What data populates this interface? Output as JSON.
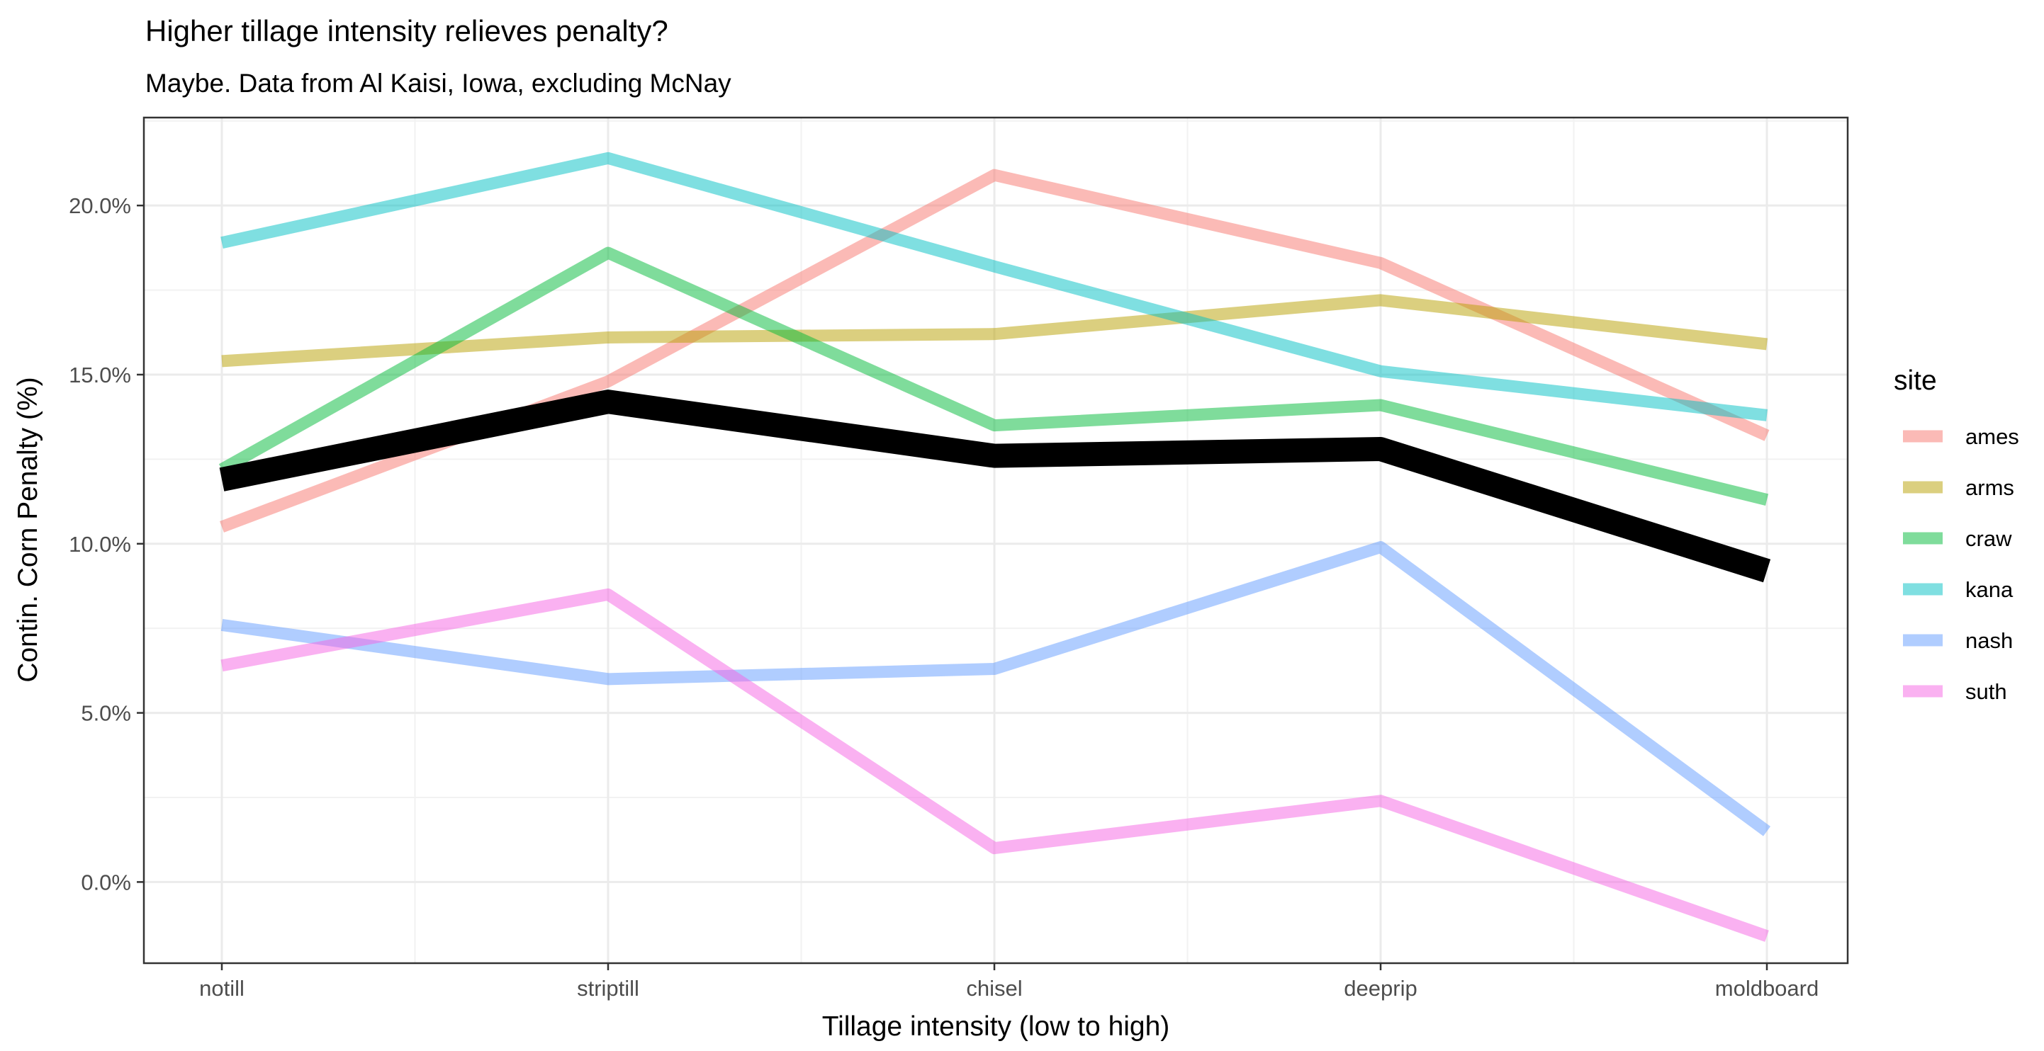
{
  "chart_data": {
    "type": "line",
    "title": "Higher tillage intensity relieves penalty?",
    "subtitle": "Maybe. Data from Al Kaisi, Iowa, excluding McNay",
    "xlabel": "Tillage intensity (low to high)",
    "ylabel": "Contin. Corn Penalty (%)",
    "categories": [
      "notill",
      "striptill",
      "chisel",
      "deeprip",
      "moldboard"
    ],
    "ylim": [
      -2.4,
      22.6
    ],
    "yticks": [
      0,
      5,
      10,
      15,
      20
    ],
    "ytick_labels": [
      "0.0%",
      "5.0%",
      "10.0%",
      "15.0%",
      "20.0%"
    ],
    "grid": true,
    "legend": {
      "title": "site",
      "position": "right"
    },
    "series": [
      {
        "name": "ames",
        "color": "#F8766D",
        "values": [
          10.5,
          14.8,
          20.9,
          18.3,
          13.2
        ]
      },
      {
        "name": "arms",
        "color": "#B79F00",
        "values": [
          15.4,
          16.1,
          16.2,
          17.2,
          15.9
        ]
      },
      {
        "name": "craw",
        "color": "#00BA38",
        "values": [
          12.2,
          18.6,
          13.5,
          14.1,
          11.3
        ]
      },
      {
        "name": "kana",
        "color": "#00BFC4",
        "values": [
          18.9,
          21.4,
          18.2,
          15.1,
          13.8
        ]
      },
      {
        "name": "nash",
        "color": "#619CFF",
        "values": [
          7.6,
          6.0,
          6.3,
          9.9,
          1.5
        ]
      },
      {
        "name": "suth",
        "color": "#F564E3",
        "values": [
          6.4,
          8.5,
          1.0,
          2.4,
          -1.6
        ]
      }
    ],
    "mean_line": {
      "color": "#000000",
      "values": [
        11.9,
        14.2,
        12.6,
        12.8,
        9.2
      ]
    }
  }
}
